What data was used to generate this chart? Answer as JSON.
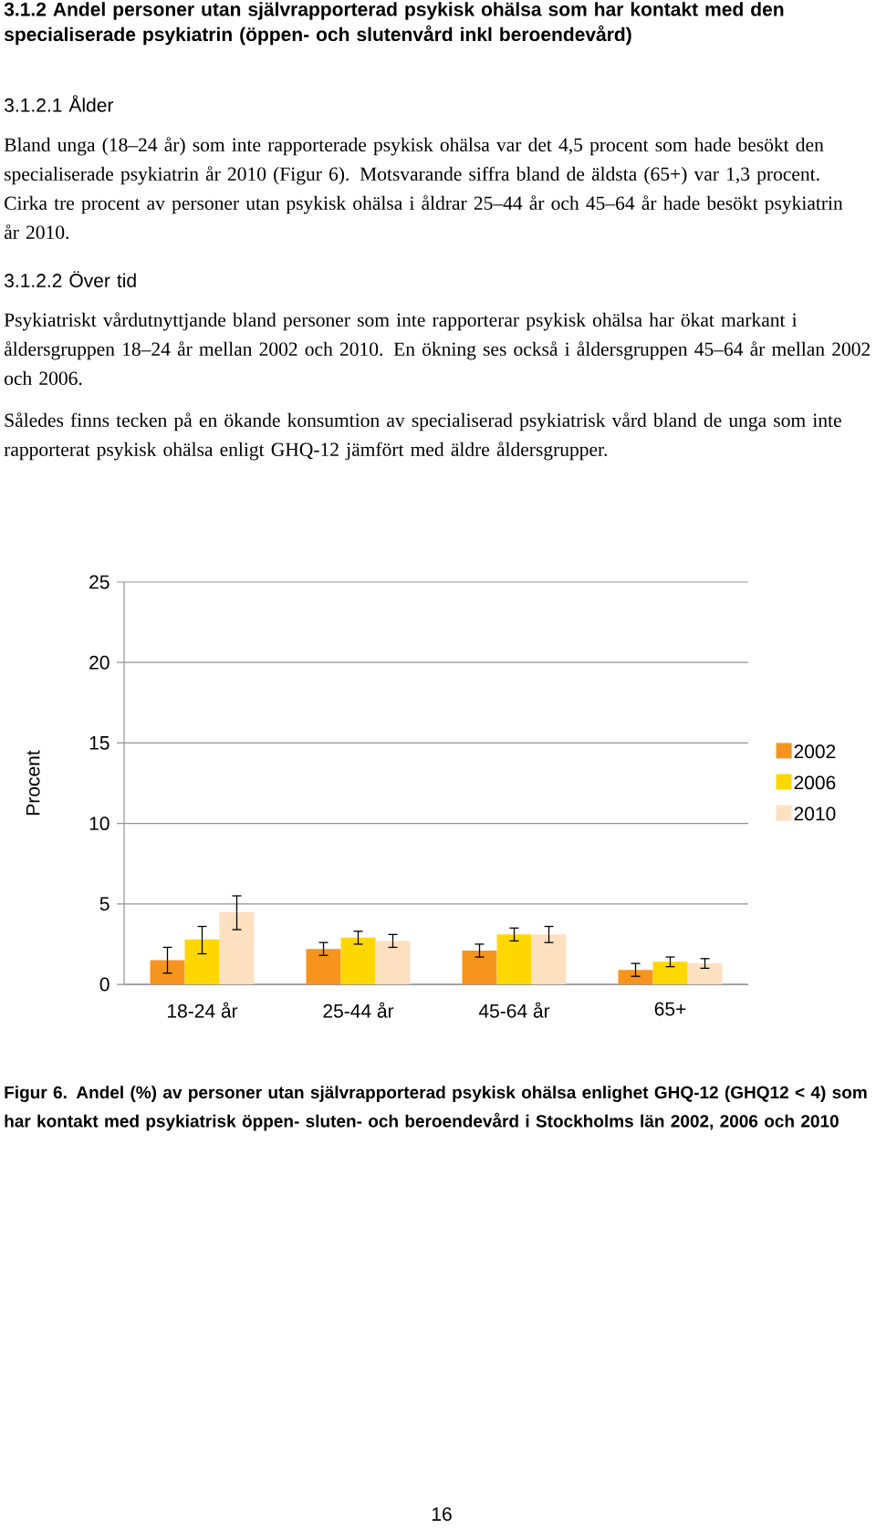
{
  "chart_data": {
    "type": "bar",
    "title": "3.1.2 Andel personer utan självrapporterad psykisk ohälsa som har kontakt med den specialiserade psykiatrin (öppen- och slutenvård inkl beroendevård)",
    "ylabel": "Procent",
    "categories": [
      "18-24 år",
      "25-44 år",
      "45-64 år",
      "65+"
    ],
    "series": [
      {
        "name": "2002",
        "color": "#f7941d",
        "values": [
          1.5,
          2.2,
          2.1,
          0.9
        ],
        "errors": [
          [
            0.7,
            2.3
          ],
          [
            1.8,
            2.6
          ],
          [
            1.7,
            2.5
          ],
          [
            0.5,
            1.3
          ]
        ]
      },
      {
        "name": "2006",
        "color": "#ffd700",
        "values": [
          2.8,
          2.9,
          3.1,
          1.4
        ],
        "errors": [
          [
            1.9,
            3.6
          ],
          [
            2.5,
            3.3
          ],
          [
            2.7,
            3.5
          ],
          [
            1.1,
            1.7
          ]
        ]
      },
      {
        "name": "2010",
        "color": "#fde0c0",
        "values": [
          4.5,
          2.7,
          3.1,
          1.3
        ],
        "errors": [
          [
            3.4,
            5.5
          ],
          [
            2.3,
            3.1
          ],
          [
            2.6,
            3.6
          ],
          [
            1.0,
            1.6
          ]
        ]
      }
    ],
    "ylim": [
      0,
      25
    ],
    "yticks": [
      0,
      5,
      10,
      15,
      20,
      25
    ],
    "grid": "y",
    "legend": "right",
    "annotations": [
      "3.1.2.1 Ålder",
      "Bland unga (18–24 år) som inte rapporterade psykisk ohälsa var det 4,5 procent som hade besökt den specialiserade psykiatrin år 2010 (Figur 6). Motsvarande siffra bland de äldsta (65+) var 1,3 procent. Cirka tre procent av personer utan psykisk ohälsa i åldrar 25–44 år och 45–64 år hade besökt psykiatrin år 2010.",
      "3.1.2.2 Över tid",
      "Psykiatriskt vårdutnyttjande bland personer som inte rapporterar psykisk ohälsa har ökat markant i åldersgruppen 18–24 år mellan 2002 och 2010. En ökning ses också i åldersgruppen 45–64 år mellan 2002 och 2006.",
      "Således finns tecken på en ökande konsumtion av specialiserad psykiatrisk vård bland de unga som inte rapporterat psykisk ohälsa enligt GHQ-12 jämfört med äldre åldersgrupper.",
      "Figur 6. Andel (%) av personer utan självrapporterad psykisk ohälsa enlighet GHQ-12 (GHQ12 < 4) som har kontakt med psykiatrisk öppen- sluten- och beroendevård i Stockholms län 2002, 2006 och 2010",
      "16"
    ]
  }
}
